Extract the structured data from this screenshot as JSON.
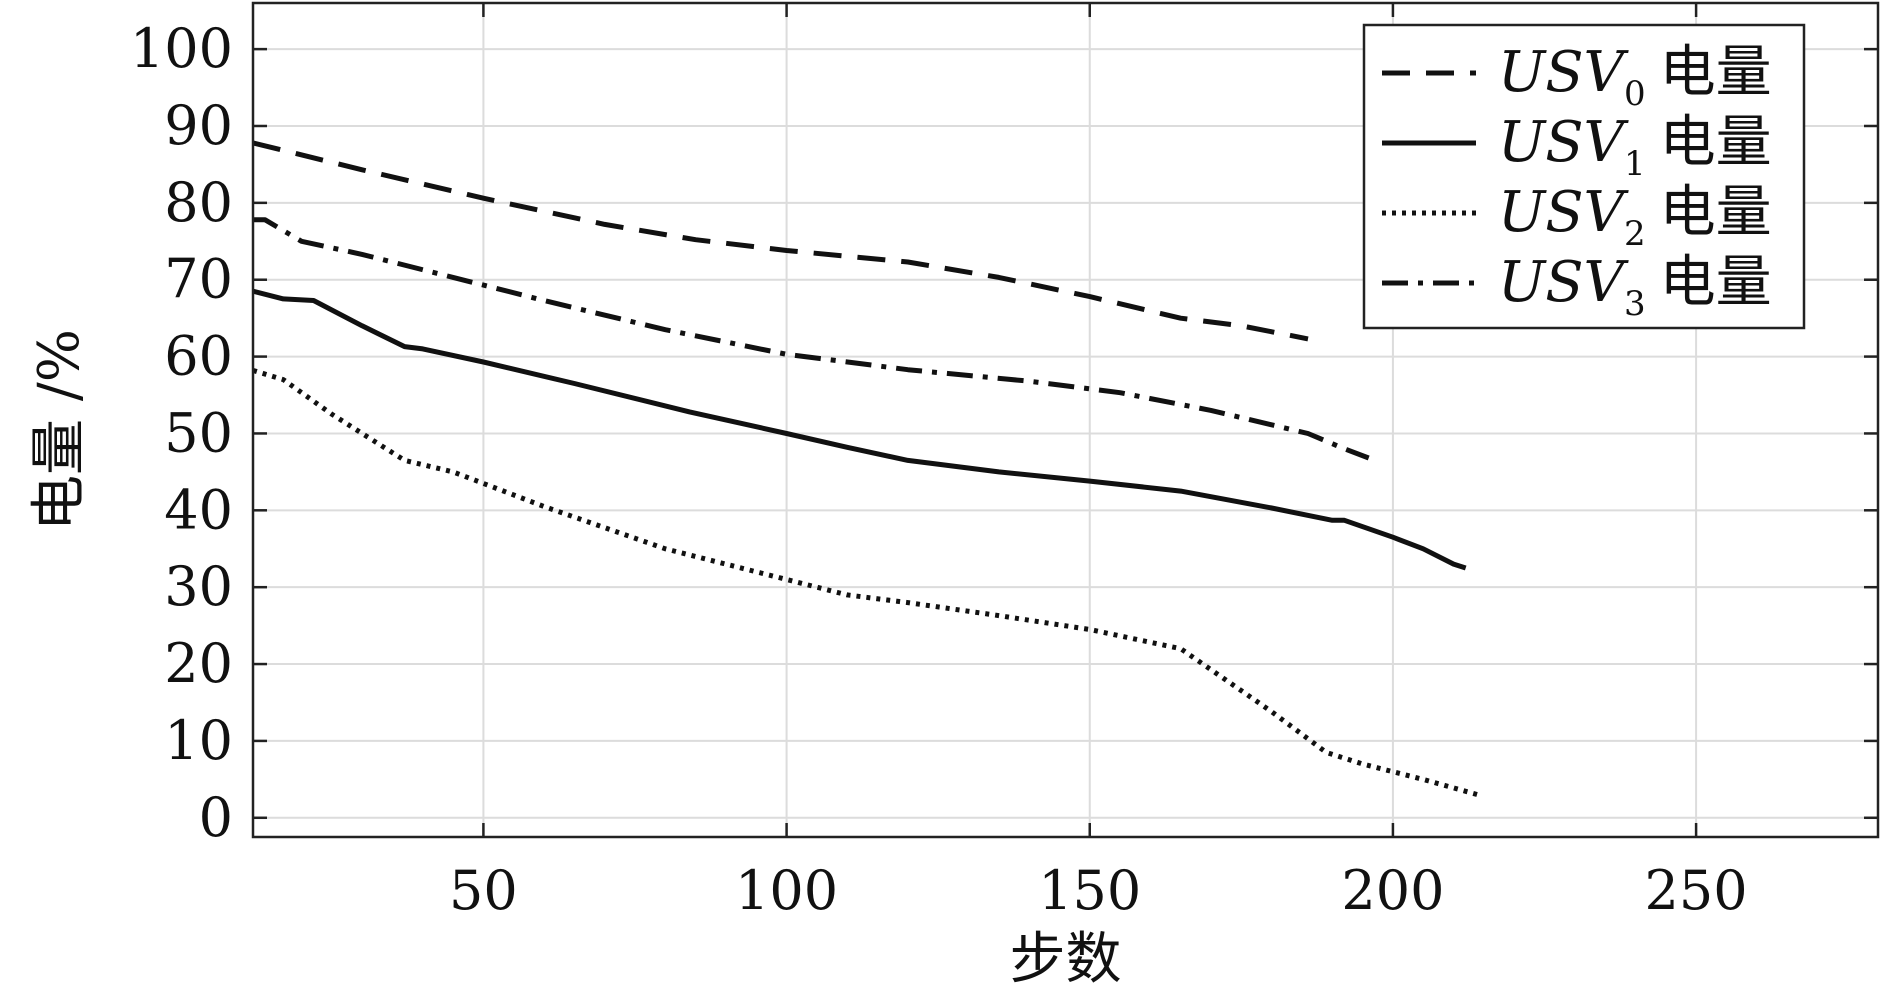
{
  "chart_data": {
    "type": "line",
    "title": "",
    "xlabel": "步数",
    "ylabel": "电量 /%",
    "xlim": [
      12,
      280
    ],
    "ylim": [
      -2.5,
      106
    ],
    "xticks": [
      50,
      100,
      150,
      200,
      250
    ],
    "yticks": [
      0,
      10,
      20,
      30,
      40,
      50,
      60,
      70,
      80,
      90,
      100
    ],
    "grid": true,
    "legend_position": "top-right",
    "series": [
      {
        "name": "USV0 电量",
        "label_base": "USV",
        "label_sub": "0",
        "label_suffix": "电量",
        "style": "dashed",
        "x": [
          12,
          30,
          50,
          70,
          85,
          100,
          120,
          135,
          150,
          165,
          175,
          186
        ],
        "y": [
          87.8,
          84.3,
          80.6,
          77.2,
          75.2,
          73.8,
          72.3,
          70.3,
          67.8,
          65.0,
          64.0,
          62.3
        ]
      },
      {
        "name": "USV1 电量",
        "label_base": "USV",
        "label_sub": "1",
        "label_suffix": "电量",
        "style": "solid",
        "x": [
          12,
          17,
          22,
          30,
          37,
          40,
          50,
          65,
          84,
          100,
          110,
          120,
          135,
          150,
          165,
          180,
          190,
          192,
          200,
          205,
          210,
          212
        ],
        "y": [
          68.5,
          67.5,
          67.3,
          64.0,
          61.3,
          61.0,
          59.3,
          56.5,
          52.8,
          50.0,
          48.2,
          46.5,
          45.0,
          43.8,
          42.5,
          40.3,
          38.7,
          38.7,
          36.5,
          35.0,
          33.0,
          32.5
        ]
      },
      {
        "name": "USV2 电量",
        "label_base": "USV",
        "label_sub": "2",
        "label_suffix": "电量",
        "style": "dotted",
        "x": [
          12,
          17,
          25,
          37,
          45,
          60,
          80,
          100,
          110,
          120,
          135,
          150,
          165,
          180,
          189,
          195,
          205,
          214
        ],
        "y": [
          58.2,
          57.0,
          52.5,
          46.5,
          45.0,
          40.5,
          35.0,
          31.0,
          29.0,
          28.0,
          26.3,
          24.5,
          22.0,
          13.8,
          8.5,
          7.0,
          5.0,
          3.0
        ]
      },
      {
        "name": "USV3 电量",
        "label_base": "USV",
        "label_sub": "3",
        "label_suffix": "电量",
        "style": "dashdot",
        "x": [
          12,
          14,
          20,
          30,
          45,
          60,
          80,
          100,
          108,
          120,
          140,
          155,
          170,
          186,
          192,
          196
        ],
        "y": [
          77.8,
          77.8,
          75.0,
          73.3,
          70.3,
          67.3,
          63.5,
          60.3,
          59.5,
          58.3,
          56.8,
          55.3,
          53.0,
          50.0,
          48.0,
          46.8
        ]
      }
    ]
  }
}
